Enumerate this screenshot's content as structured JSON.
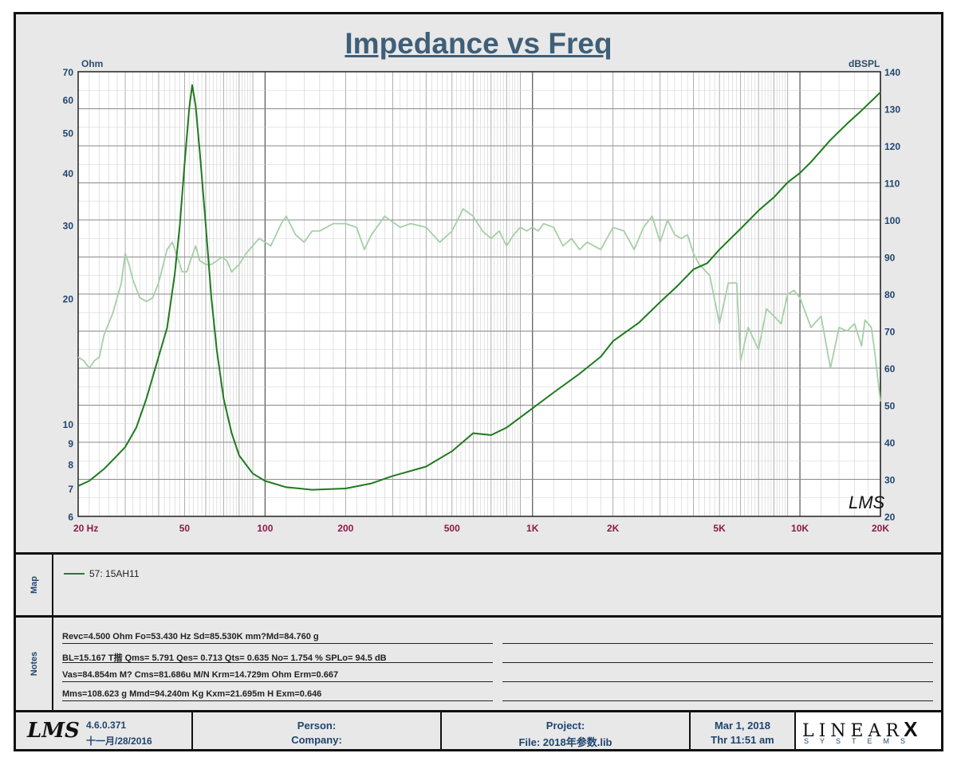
{
  "chart_data": {
    "type": "line",
    "title": "Impedance vs Freq",
    "xscale": "log",
    "xlim": [
      20,
      20000
    ],
    "x_tick_labels": [
      {
        "value": 20,
        "label": "20  Hz"
      },
      {
        "value": 50,
        "label": "50"
      },
      {
        "value": 100,
        "label": "100"
      },
      {
        "value": 200,
        "label": "200"
      },
      {
        "value": 500,
        "label": "500"
      },
      {
        "value": 1000,
        "label": "1K"
      },
      {
        "value": 2000,
        "label": "2K"
      },
      {
        "value": 5000,
        "label": "5K"
      },
      {
        "value": 10000,
        "label": "10K"
      },
      {
        "value": 20000,
        "label": "20K"
      }
    ],
    "y_left": {
      "label": "Ohm",
      "scale": "log",
      "ylim": [
        6,
        70
      ],
      "ticks": [
        6,
        7,
        8,
        9,
        10,
        20,
        30,
        40,
        50,
        60,
        70
      ]
    },
    "y_right": {
      "label": "dBSPL",
      "scale": "linear",
      "ylim": [
        20,
        140
      ],
      "ticks": [
        20,
        30,
        40,
        50,
        60,
        70,
        80,
        90,
        100,
        110,
        120,
        130,
        140
      ]
    },
    "grid": true,
    "watermark": "LMS",
    "series": [
      {
        "name": "57: 15AH11 impedance",
        "axis": "left",
        "color": "#1e7a1e",
        "points": [
          [
            20,
            7.1
          ],
          [
            22,
            7.3
          ],
          [
            25,
            7.8
          ],
          [
            28,
            8.4
          ],
          [
            30,
            8.8
          ],
          [
            33,
            9.8
          ],
          [
            36,
            11.5
          ],
          [
            40,
            14.5
          ],
          [
            43,
            17.0
          ],
          [
            46,
            23.0
          ],
          [
            48,
            30.0
          ],
          [
            50,
            42.0
          ],
          [
            52,
            57.0
          ],
          [
            53.4,
            65.0
          ],
          [
            55,
            58.0
          ],
          [
            57,
            45.0
          ],
          [
            60,
            30.0
          ],
          [
            63,
            20.0
          ],
          [
            66,
            15.0
          ],
          [
            70,
            11.5
          ],
          [
            75,
            9.5
          ],
          [
            80,
            8.4
          ],
          [
            90,
            7.6
          ],
          [
            100,
            7.3
          ],
          [
            120,
            7.05
          ],
          [
            150,
            6.95
          ],
          [
            200,
            7.0
          ],
          [
            250,
            7.2
          ],
          [
            300,
            7.5
          ],
          [
            400,
            7.9
          ],
          [
            500,
            8.6
          ],
          [
            600,
            9.5
          ],
          [
            700,
            9.4
          ],
          [
            800,
            9.8
          ],
          [
            1000,
            10.9
          ],
          [
            1200,
            11.9
          ],
          [
            1500,
            13.2
          ],
          [
            1800,
            14.5
          ],
          [
            2000,
            15.8
          ],
          [
            2500,
            17.5
          ],
          [
            3000,
            19.6
          ],
          [
            3500,
            21.5
          ],
          [
            4000,
            23.5
          ],
          [
            4500,
            24.3
          ],
          [
            5000,
            26.2
          ],
          [
            6000,
            29.4
          ],
          [
            7000,
            32.5
          ],
          [
            8000,
            35.0
          ],
          [
            9000,
            38.0
          ],
          [
            10000,
            40.0
          ],
          [
            11000,
            42.5
          ],
          [
            13000,
            48.0
          ],
          [
            15000,
            52.5
          ],
          [
            17000,
            56.5
          ],
          [
            19000,
            60.5
          ],
          [
            20000,
            62.5
          ]
        ]
      },
      {
        "name": "SPL",
        "axis": "right",
        "color": "#a6cfa6",
        "points": [
          [
            20,
            63
          ],
          [
            21,
            62
          ],
          [
            22,
            60
          ],
          [
            23,
            62
          ],
          [
            24,
            63
          ],
          [
            25,
            69
          ],
          [
            27,
            75
          ],
          [
            29,
            83
          ],
          [
            30,
            91
          ],
          [
            31,
            88
          ],
          [
            32,
            84
          ],
          [
            34,
            79
          ],
          [
            36,
            78
          ],
          [
            38,
            79
          ],
          [
            40,
            83
          ],
          [
            43,
            92
          ],
          [
            45,
            94
          ],
          [
            47,
            90
          ],
          [
            49,
            86
          ],
          [
            51,
            86
          ],
          [
            52,
            88
          ],
          [
            55,
            93
          ],
          [
            57,
            89
          ],
          [
            60,
            88
          ],
          [
            63,
            88
          ],
          [
            66,
            89
          ],
          [
            69,
            90
          ],
          [
            72,
            89
          ],
          [
            75,
            86
          ],
          [
            80,
            88
          ],
          [
            85,
            91
          ],
          [
            95,
            95
          ],
          [
            100,
            94
          ],
          [
            105,
            93
          ],
          [
            115,
            99
          ],
          [
            120,
            101
          ],
          [
            130,
            96
          ],
          [
            140,
            94
          ],
          [
            150,
            97
          ],
          [
            160,
            97
          ],
          [
            180,
            99
          ],
          [
            200,
            99
          ],
          [
            220,
            98
          ],
          [
            235,
            92
          ],
          [
            250,
            96
          ],
          [
            280,
            101
          ],
          [
            320,
            98
          ],
          [
            350,
            99
          ],
          [
            400,
            98
          ],
          [
            450,
            94
          ],
          [
            500,
            97
          ],
          [
            550,
            103
          ],
          [
            600,
            101
          ],
          [
            650,
            97
          ],
          [
            700,
            95
          ],
          [
            750,
            97
          ],
          [
            800,
            93
          ],
          [
            850,
            96
          ],
          [
            900,
            98
          ],
          [
            950,
            97
          ],
          [
            1000,
            98
          ],
          [
            1050,
            97
          ],
          [
            1100,
            99
          ],
          [
            1200,
            98
          ],
          [
            1300,
            93
          ],
          [
            1400,
            95
          ],
          [
            1500,
            92
          ],
          [
            1600,
            94
          ],
          [
            1800,
            92
          ],
          [
            2000,
            98
          ],
          [
            2200,
            97
          ],
          [
            2400,
            92
          ],
          [
            2600,
            98
          ],
          [
            2800,
            101
          ],
          [
            3000,
            94
          ],
          [
            3200,
            100
          ],
          [
            3400,
            96
          ],
          [
            3600,
            95
          ],
          [
            3800,
            96
          ],
          [
            4000,
            91
          ],
          [
            4200,
            88
          ],
          [
            4600,
            85
          ],
          [
            5000,
            72
          ],
          [
            5400,
            83
          ],
          [
            5800,
            83
          ],
          [
            6000,
            62
          ],
          [
            6400,
            71
          ],
          [
            7000,
            65
          ],
          [
            7500,
            76
          ],
          [
            8000,
            74
          ],
          [
            8500,
            72
          ],
          [
            9000,
            80
          ],
          [
            9500,
            81
          ],
          [
            10000,
            79
          ],
          [
            11000,
            71
          ],
          [
            12000,
            74
          ],
          [
            13000,
            60
          ],
          [
            14000,
            71
          ],
          [
            15000,
            70
          ],
          [
            16000,
            72
          ],
          [
            17000,
            66
          ],
          [
            17500,
            73
          ],
          [
            18500,
            71
          ],
          [
            19000,
            65
          ],
          [
            20000,
            51
          ]
        ]
      }
    ]
  },
  "legend": {
    "section_label": "Map",
    "entries": [
      {
        "label": "57: 15AH11",
        "color": "#2a7a2a"
      }
    ]
  },
  "notes": {
    "section_label": "Notes",
    "lines": [
      "Revc=4.500 Ohm  Fo=53.430 Hz  Sd=85.530K mm?Md=84.760 g",
      "BL=15.167 T揩  Qms= 5.791  Qes= 0.713  Qts= 0.635  No= 1.754 %  SPLo= 94.5 dB",
      "Vas=84.854m M? Cms=81.686u M/N  Krm=14.729m Ohm  Erm=0.667",
      "Mms=108.623 g  Mmd=94.240m Kg  Kxm=21.695m H  Exm=0.646"
    ]
  },
  "footer": {
    "logo_text": "LMS",
    "version": "4.6.0.371",
    "version_date": "十一月/28/2016",
    "person_label": "Person:",
    "company_label": "Company:",
    "project_label": "Project:",
    "file_label": "File: 2018年参数.lib",
    "date": "Mar  1, 2018",
    "time": "Thr 11:51 am",
    "brand_top": "LINEAR",
    "brand_x": "X",
    "brand_bottom": "SYSTEMS"
  }
}
